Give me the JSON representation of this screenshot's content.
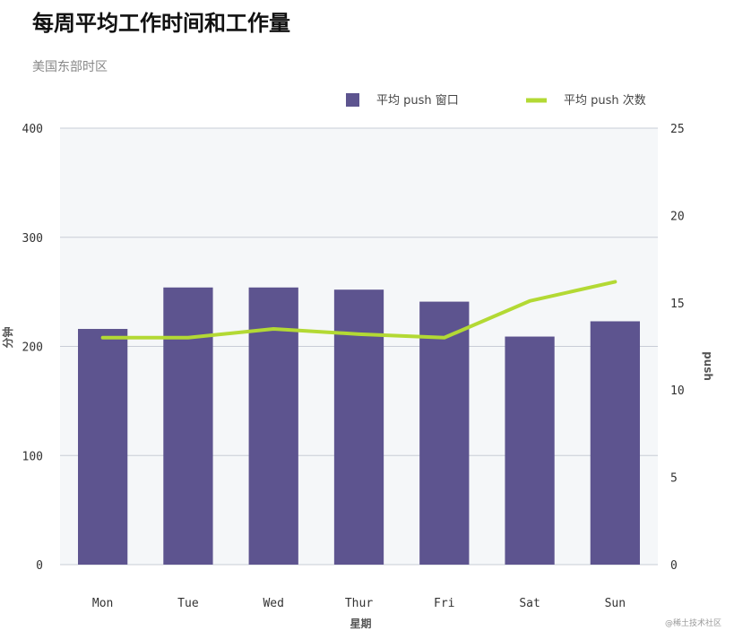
{
  "chart_data": {
    "type": "bar",
    "title": "每周平均工作时间和工作量",
    "subtitle": "美国东部时区",
    "xlabel": "星期",
    "ylabel": "分钟",
    "y2label": "push",
    "categories": [
      "Mon",
      "Tue",
      "Wed",
      "Thur",
      "Fri",
      "Sat",
      "Sun"
    ],
    "ylim": [
      0,
      400
    ],
    "y_ticks": [
      0,
      100,
      200,
      300,
      400
    ],
    "y2lim": [
      0,
      25
    ],
    "y2_ticks": [
      0,
      5,
      10,
      15,
      20,
      25
    ],
    "series": [
      {
        "name": "平均 push 窗口",
        "kind": "bar",
        "axis": "left",
        "color": "#5d548f",
        "values": [
          216,
          254,
          254,
          252,
          241,
          209,
          223
        ]
      },
      {
        "name": "平均 push 次数",
        "kind": "line",
        "axis": "right",
        "color": "#b3d934",
        "values": [
          13.0,
          13.0,
          13.5,
          13.2,
          13.0,
          15.1,
          16.2
        ]
      }
    ],
    "legend_position": "top-right",
    "grid": true,
    "plot_background": "#f5f7f9",
    "gridline_color": "#c8cdd6"
  },
  "watermark": "@稀土技术社区"
}
